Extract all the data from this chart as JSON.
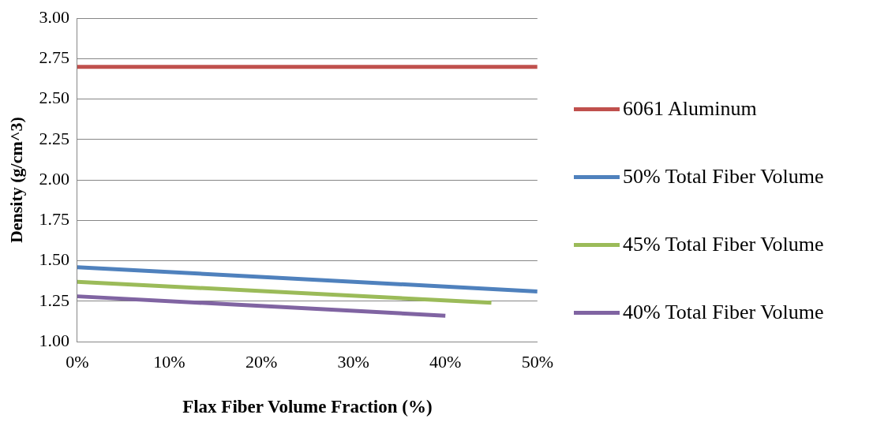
{
  "chart_data": {
    "type": "line",
    "xlabel": "Flax Fiber Volume Fraction (%)",
    "ylabel": "Density (g/cm^3)",
    "xlim": [
      0,
      50
    ],
    "xticks": [
      {
        "value": 0,
        "label": "0%"
      },
      {
        "value": 10,
        "label": "10%"
      },
      {
        "value": 20,
        "label": "20%"
      },
      {
        "value": 30,
        "label": "30%"
      },
      {
        "value": 40,
        "label": "40%"
      },
      {
        "value": 50,
        "label": "50%"
      }
    ],
    "ylim": [
      1,
      3
    ],
    "yticks": [
      {
        "value": 1,
        "label": "1.00"
      },
      {
        "value": 1.25,
        "label": "1.25"
      },
      {
        "value": 1.5,
        "label": "1.50"
      },
      {
        "value": 1.75,
        "label": "1.75"
      },
      {
        "value": 2,
        "label": "2.00"
      },
      {
        "value": 2.25,
        "label": "2.25"
      },
      {
        "value": 2.5,
        "label": "2.50"
      },
      {
        "value": 2.75,
        "label": "2.75"
      },
      {
        "value": 3,
        "label": "3.00"
      }
    ],
    "grid": "y",
    "legend": "right",
    "marker": "none",
    "line_style": "solid",
    "series": [
      {
        "name": "6061 Aluminum",
        "color": "#c0504d",
        "x": [
          0,
          50
        ],
        "values": [
          2.7,
          2.7
        ]
      },
      {
        "name": "50% Total Fiber Volume",
        "color": "#4f81bd",
        "x": [
          0,
          50
        ],
        "values": [
          1.46,
          1.31
        ]
      },
      {
        "name": "45% Total Fiber Volume",
        "color": "#9bbb59",
        "x": [
          0,
          45
        ],
        "values": [
          1.37,
          1.24
        ]
      },
      {
        "name": "40% Total Fiber Volume",
        "color": "#8064a2",
        "x": [
          0,
          40
        ],
        "values": [
          1.28,
          1.16
        ]
      }
    ]
  }
}
